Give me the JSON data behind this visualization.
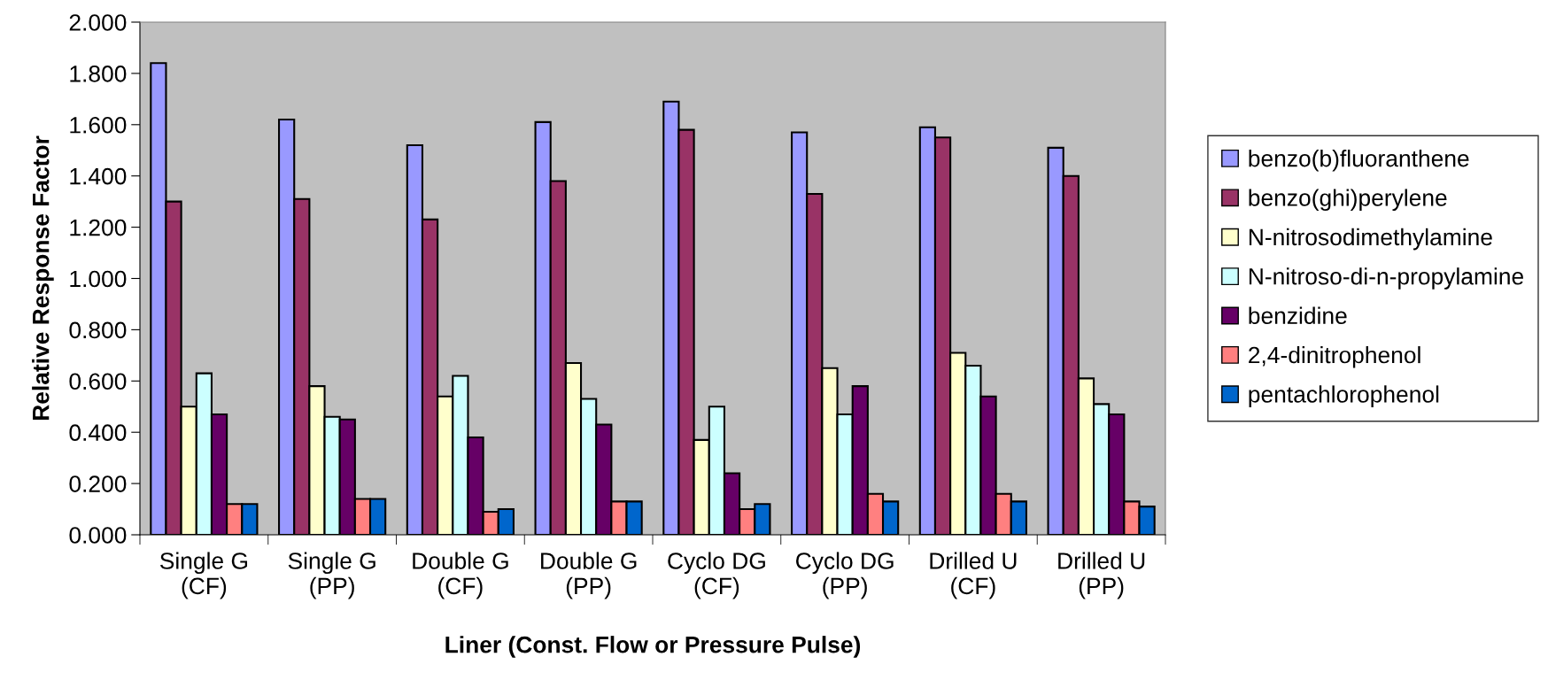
{
  "chart_data": {
    "type": "bar",
    "xlabel": "Liner (Const. Flow or Pressure Pulse)",
    "ylabel": "Relative Response Factor",
    "categories": [
      "Single G\n(CF)",
      "Single G\n(PP)",
      "Double G\n(CF)",
      "Double G\n(PP)",
      "Cyclo DG\n(CF)",
      "Cyclo DG\n(PP)",
      "Drilled U\n(CF)",
      "Drilled U\n(PP)"
    ],
    "series": [
      {
        "name": "benzo(b)fluoranthene",
        "color": "#9999ff",
        "values": [
          1.84,
          1.62,
          1.52,
          1.61,
          1.69,
          1.57,
          1.59,
          1.51
        ]
      },
      {
        "name": "benzo(ghi)perylene",
        "color": "#993366",
        "values": [
          1.3,
          1.31,
          1.23,
          1.38,
          1.58,
          1.33,
          1.55,
          1.4
        ]
      },
      {
        "name": "N-nitrosodimethylamine",
        "color": "#ffffcc",
        "values": [
          0.5,
          0.58,
          0.54,
          0.67,
          0.37,
          0.65,
          0.71,
          0.61
        ]
      },
      {
        "name": "N-nitroso-di-n-propylamine",
        "color": "#ccffff",
        "values": [
          0.63,
          0.46,
          0.62,
          0.53,
          0.5,
          0.47,
          0.66,
          0.51
        ]
      },
      {
        "name": "benzidine",
        "color": "#660066",
        "values": [
          0.47,
          0.45,
          0.38,
          0.43,
          0.24,
          0.58,
          0.54,
          0.47
        ]
      },
      {
        "name": "2,4-dinitrophenol",
        "color": "#ff8080",
        "values": [
          0.12,
          0.14,
          0.09,
          0.13,
          0.1,
          0.16,
          0.16,
          0.13
        ]
      },
      {
        "name": "pentachlorophenol",
        "color": "#0066cc",
        "values": [
          0.12,
          0.14,
          0.1,
          0.13,
          0.12,
          0.13,
          0.13,
          0.11
        ]
      }
    ],
    "ylim": [
      0,
      2
    ],
    "yticks": [
      {
        "value": 0,
        "label": "0.000"
      },
      {
        "value": 0.2,
        "label": "0.200"
      },
      {
        "value": 0.4,
        "label": "0.400"
      },
      {
        "value": 0.6,
        "label": "0.600"
      },
      {
        "value": 0.8,
        "label": "0.800"
      },
      {
        "value": 1,
        "label": "1.000"
      },
      {
        "value": 1.2,
        "label": "1.200"
      },
      {
        "value": 1.4,
        "label": "1.400"
      },
      {
        "value": 1.6,
        "label": "1.600"
      },
      {
        "value": 1.8,
        "label": "1.800"
      },
      {
        "value": 2,
        "label": "2.000"
      }
    ],
    "legend": "right"
  }
}
